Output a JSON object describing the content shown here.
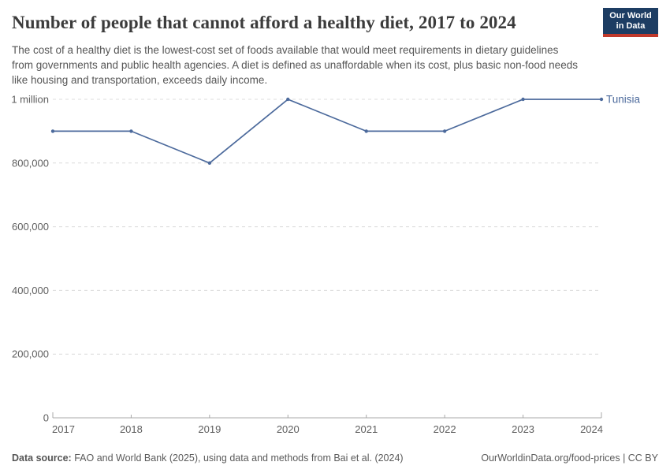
{
  "header": {
    "title": "Number of people that cannot afford a healthy diet, 2017 to 2024",
    "subtitle": "The cost of a healthy diet is the lowest-cost set of foods available that would meet requirements in dietary guidelines from governments and public health agencies. A diet is defined as unaffordable when its cost, plus basic non-food needs like housing and transportation, exceeds daily income.",
    "logo": {
      "line1": "Our World",
      "line2": "in Data"
    }
  },
  "colors": {
    "line": "#4c6a9c",
    "entity_label": "#4c6a9c",
    "grid": "#dcdcdc",
    "axis": "#a8a8a8",
    "tick_text": "#5f5f5f",
    "logo_bg": "#1d3d63",
    "logo_bar": "#c0392b"
  },
  "chart_data": {
    "type": "line",
    "title": "Number of people that cannot afford a healthy diet, 2017 to 2024",
    "x": [
      2017,
      2018,
      2019,
      2020,
      2021,
      2022,
      2023,
      2024
    ],
    "x_tick_labels": [
      "2017",
      "2018",
      "2019",
      "2020",
      "2021",
      "2022",
      "2023",
      "2024"
    ],
    "series": [
      {
        "name": "Tunisia",
        "values": [
          900000,
          900000,
          800000,
          1000000,
          900000,
          900000,
          1000000,
          1000000
        ]
      }
    ],
    "ylim": [
      0,
      1000000
    ],
    "y_ticks": [
      {
        "value": 0,
        "label": "0"
      },
      {
        "value": 200000,
        "label": "200,000"
      },
      {
        "value": 400000,
        "label": "400,000"
      },
      {
        "value": 600000,
        "label": "600,000"
      },
      {
        "value": 800000,
        "label": "800,000"
      },
      {
        "value": 1000000,
        "label": "1 million"
      }
    ],
    "grid": "horizontal-dashed",
    "legend_position": "end-of-line-label",
    "end_label": "Tunisia"
  },
  "footer": {
    "datasource_label": "Data source:",
    "datasource_text": "FAO and World Bank (2025), using data and methods from Bai et al. (2024)",
    "credit": "OurWorldinData.org/food-prices | CC BY"
  }
}
